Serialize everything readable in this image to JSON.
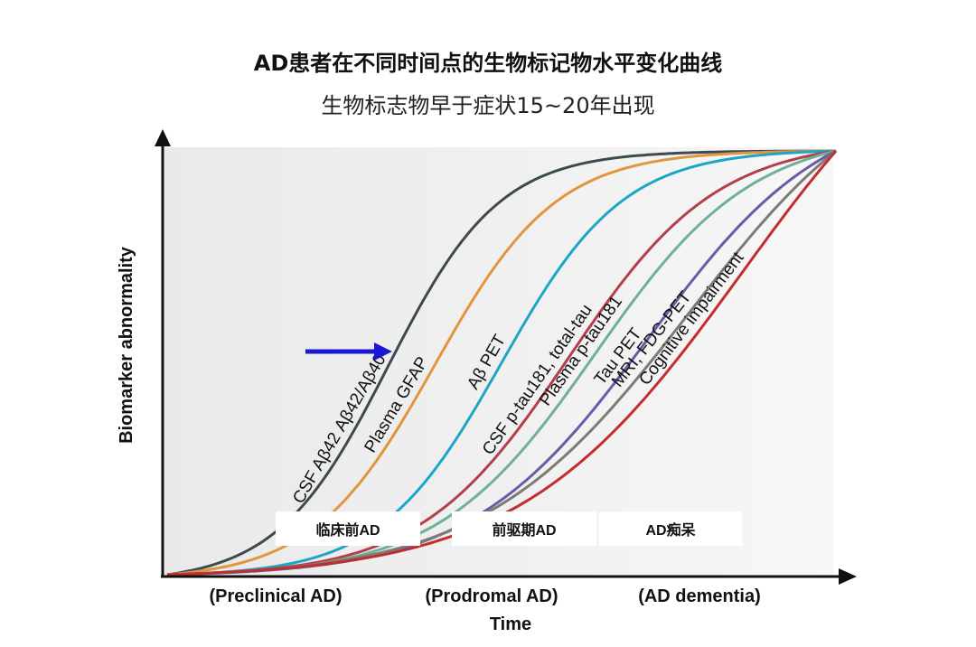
{
  "title": "AD患者在不同时间点的生物标记物水平变化曲线",
  "subtitle": "生物标志物早于症状15~20年出现",
  "chart_data": {
    "type": "line",
    "xlabel": "Time",
    "ylabel": "Biomarker abnormality",
    "xlim": [
      0,
      1
    ],
    "ylim": [
      0,
      1
    ],
    "grid": false,
    "x_stage_labels": [
      "(Preclinical AD)",
      "(Prodromal AD)",
      "(AD dementia)"
    ],
    "stage_badges": [
      "临床前AD",
      "前驱期AD",
      "AD痴呆"
    ],
    "arrow_target": "CSF Aβ42 Aβ42/Aβ40",
    "series": [
      {
        "name": "CSF Aβ42 Aβ42/Aβ40",
        "color": "#3c4a50",
        "midpoint": 0.33,
        "steepness": 12
      },
      {
        "name": "Plasma GFAP",
        "color": "#e1953c",
        "midpoint": 0.4,
        "steepness": 11
      },
      {
        "name": "Aβ PET",
        "color": "#1ba6c8",
        "midpoint": 0.5,
        "steepness": 11
      },
      {
        "name": "CSF p-tau181, total-tau",
        "color": "#b33f4a",
        "midpoint": 0.6,
        "steepness": 9
      },
      {
        "name": "Plasma p-tau181",
        "color": "#6fb09a",
        "midpoint": 0.64,
        "steepness": 8.5
      },
      {
        "name": "Tau PET",
        "color": "#6a5aa8",
        "midpoint": 0.72,
        "steepness": 7.5
      },
      {
        "name": "MRI, FDG-PET",
        "color": "#7f7a72",
        "midpoint": 0.78,
        "steepness": 6.5
      },
      {
        "name": "Cognitive impairment",
        "color": "#c22d2d",
        "midpoint": 0.86,
        "steepness": 6
      }
    ]
  }
}
